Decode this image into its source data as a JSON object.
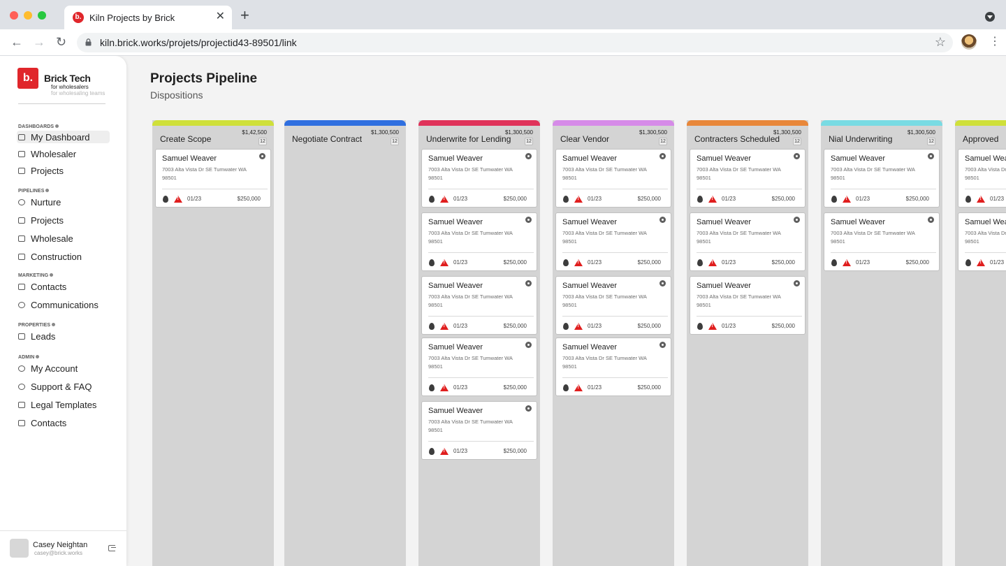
{
  "browser": {
    "tab_title": "Kiln Projects by Brick",
    "tab_favicon": "b.",
    "tab_close": "✕",
    "new_tab": "+",
    "url": "kiln.brick.works/projets/projectid43-89501/link",
    "icons": [
      "back-arrow-icon",
      "forward-arrow-icon",
      "reload-icon",
      "lock-icon",
      "star-icon",
      "kebab-menu-icon"
    ]
  },
  "brand": {
    "logo": "b.",
    "name": "Brick Tech",
    "tagline": "for wholesalers",
    "tagline2": "for wholesaling teams",
    "color": "#e0262b"
  },
  "sidebar": {
    "sections": [
      {
        "title": "DASHBOARDS",
        "items": [
          {
            "label": "My Dashboard",
            "icon": "dashboard-icon",
            "active": true
          },
          {
            "label": "Wholesaler",
            "icon": "briefcase-icon"
          },
          {
            "label": "Projects",
            "icon": "calendar-icon"
          }
        ]
      },
      {
        "title": "PIPELINES",
        "items": [
          {
            "label": "Nurture",
            "icon": "home-icon"
          },
          {
            "label": "Projects",
            "icon": "kanban-icon"
          },
          {
            "label": "Wholesale",
            "icon": "house-icon"
          },
          {
            "label": "Construction",
            "icon": "toolbox-icon"
          }
        ]
      },
      {
        "title": "MARKETING",
        "items": [
          {
            "label": "Contacts",
            "icon": "contact-card-icon"
          },
          {
            "label": "Communications",
            "icon": "headset-icon"
          }
        ]
      },
      {
        "title": "PROPERTIES",
        "items": [
          {
            "label": "Leads",
            "icon": "book-icon"
          }
        ]
      },
      {
        "title": "ADMIN",
        "items": [
          {
            "label": "My Account",
            "icon": "user-circle-icon"
          },
          {
            "label": "Support & FAQ",
            "icon": "headset-icon"
          },
          {
            "label": "Legal Templates",
            "icon": "document-icon"
          },
          {
            "label": "Contacts",
            "icon": "contact-book-icon"
          }
        ]
      }
    ],
    "user": {
      "name": "Casey Neightan",
      "email": "casey@brick.works"
    }
  },
  "page": {
    "title": "Projects Pipeline",
    "subtitle": "Dispositions"
  },
  "card_template": {
    "name": "Samuel Weaver",
    "address": "7003 Alta Vista Dr SE Tumwater WA 98501",
    "date": "01/23",
    "price": "$250,000"
  },
  "columns": [
    {
      "title": "Create Scope",
      "amount": "$1,42,500",
      "count": "12",
      "color": "#cfe03a",
      "card_count": 1
    },
    {
      "title": "Negotiate Contract",
      "amount": "$1,300,500",
      "count": "12",
      "color": "#2f6fe0",
      "card_count": 0
    },
    {
      "title": "Underwrite for Lending",
      "amount": "$1,300,500",
      "count": "12",
      "color": "#e0335a",
      "card_count": 5
    },
    {
      "title": "Clear Vendor",
      "amount": "$1,300,500",
      "count": "12",
      "color": "#d68be8",
      "card_count": 4
    },
    {
      "title": "Contracters Scheduled",
      "amount": "$1,300,500",
      "count": "12",
      "color": "#e8873a",
      "card_count": 3
    },
    {
      "title": "Nial Underwriting",
      "amount": "$1,300,500",
      "count": "12",
      "color": "#79dbe3",
      "card_count": 2
    },
    {
      "title": "Approved",
      "amount": "",
      "count": "",
      "color": "#cfe03a",
      "card_count": 2
    }
  ]
}
